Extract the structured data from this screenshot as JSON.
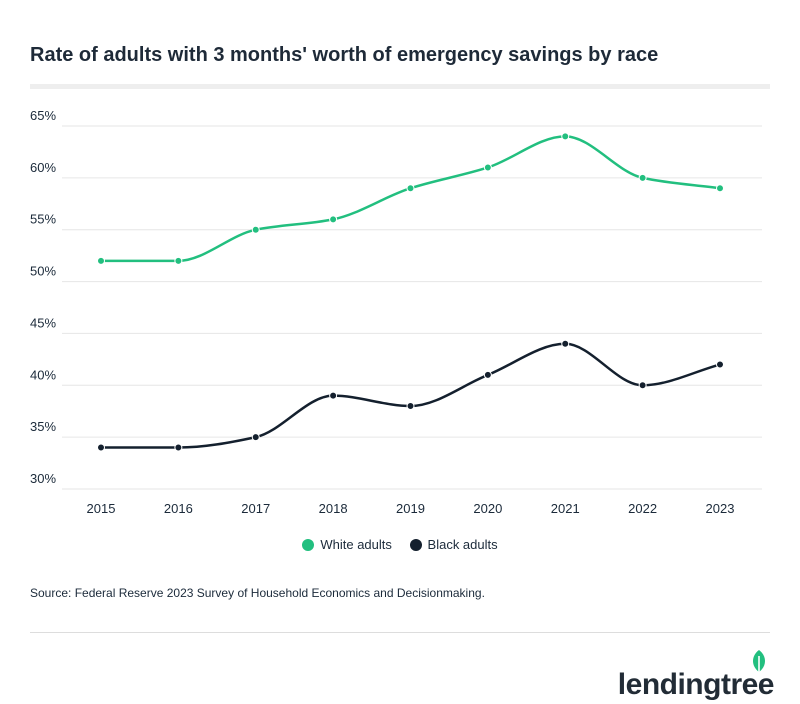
{
  "title": "Rate of adults with 3 months' worth of emergency savings by race",
  "source": "Source: Federal Reserve 2023 Survey of Household Economics and Decisionmaking.",
  "brand": "lendingtree",
  "colors": {
    "white_adults": "#22bf7f",
    "black_adults": "#14202e",
    "grid": "#e6e6e6"
  },
  "chart_data": {
    "type": "line",
    "categories": [
      "2015",
      "2016",
      "2017",
      "2018",
      "2019",
      "2020",
      "2021",
      "2022",
      "2023"
    ],
    "series": [
      {
        "name": "White adults",
        "values": [
          52,
          52,
          55,
          56,
          59,
          61,
          64,
          60,
          59
        ]
      },
      {
        "name": "Black adults",
        "values": [
          34,
          34,
          35,
          39,
          38,
          41,
          44,
          40,
          42
        ]
      }
    ],
    "ylim": [
      30,
      65
    ],
    "yticks": [
      "30%",
      "35%",
      "40%",
      "45%",
      "50%",
      "55%",
      "60%",
      "65%"
    ],
    "ytick_values": [
      30,
      35,
      40,
      45,
      50,
      55,
      60,
      65
    ],
    "grid": true,
    "legend_position": "bottom-center",
    "title": "Rate of adults with 3 months' worth of emergency savings by race"
  }
}
